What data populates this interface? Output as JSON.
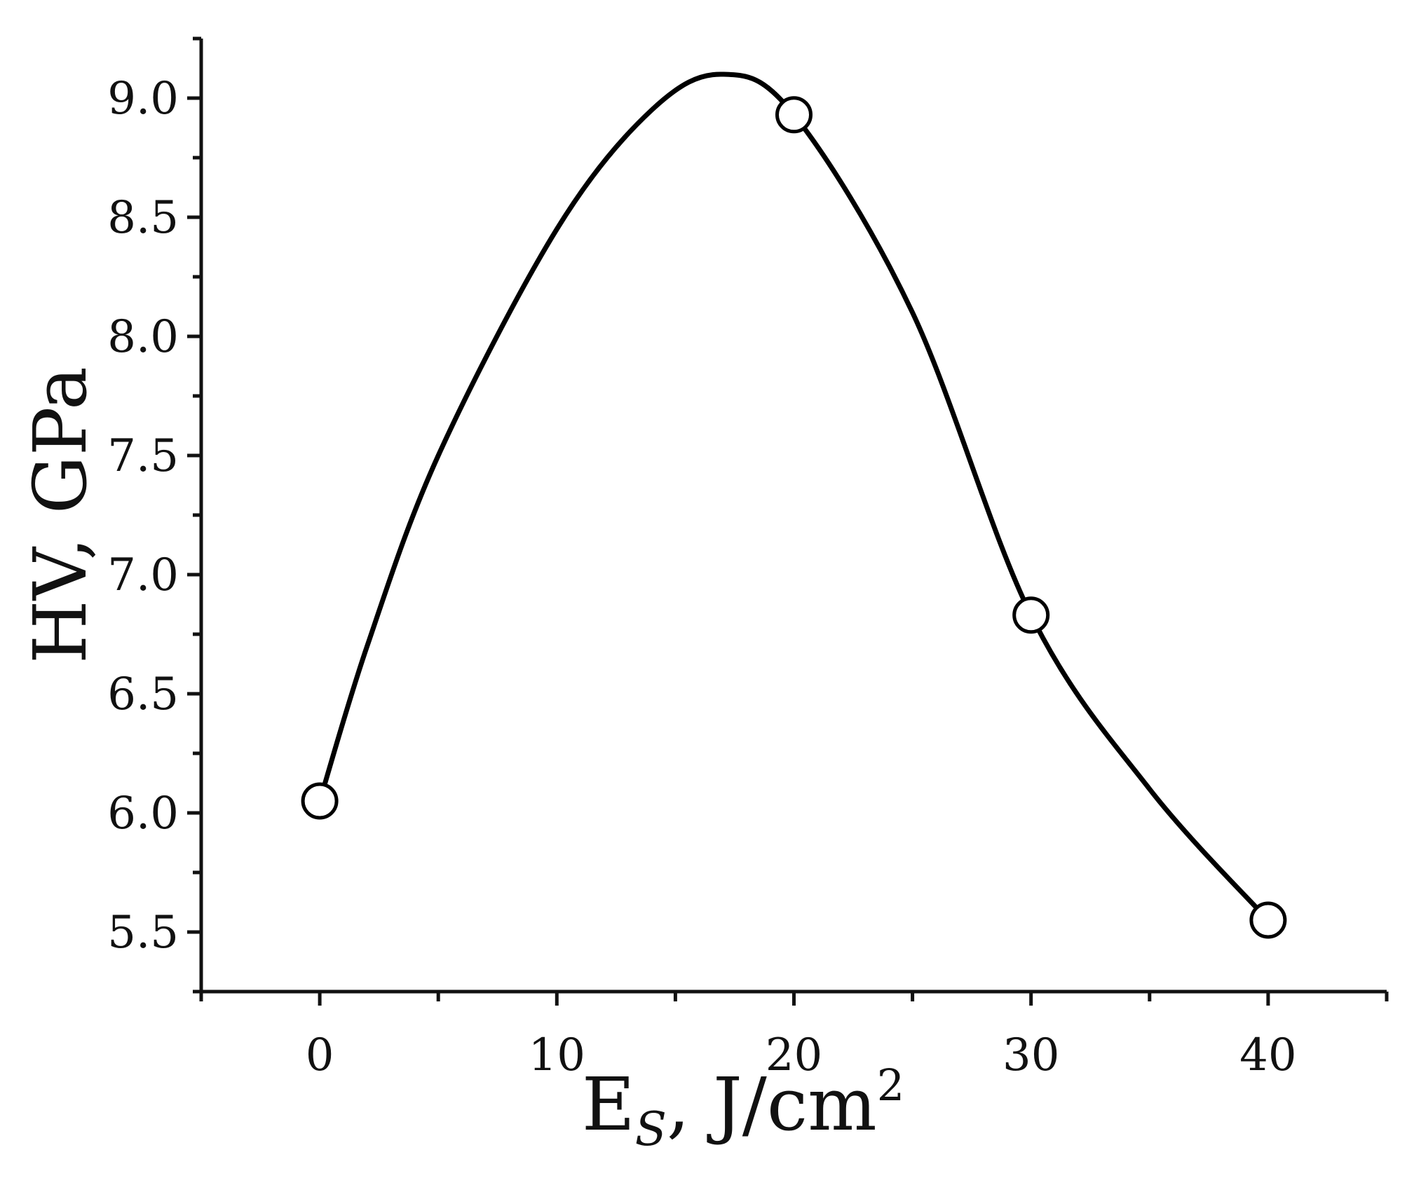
{
  "chart_data": {
    "type": "line",
    "title": "",
    "xlabel": "E",
    "xlabel_subscript": "S",
    "xlabel_rest": ", J/cm",
    "xlabel_superscript": "2",
    "ylabel": "HV, GPa",
    "xlim": [
      -5,
      45
    ],
    "ylim": [
      5.25,
      9.25
    ],
    "x_ticks": [
      0,
      10,
      20,
      30,
      40
    ],
    "x_tick_labels": [
      "0",
      "10",
      "20",
      "30",
      "40"
    ],
    "x_minor_ticks": [
      -5,
      5,
      15,
      25,
      35,
      45
    ],
    "y_ticks": [
      5.5,
      6.0,
      6.5,
      7.0,
      7.5,
      8.0,
      8.5,
      9.0
    ],
    "y_tick_labels": [
      "5.5",
      "6.0",
      "6.5",
      "7.0",
      "7.5",
      "8.0",
      "8.5",
      "9.0"
    ],
    "y_minor_ticks": [
      5.25,
      5.75,
      6.25,
      6.75,
      7.25,
      7.75,
      8.25,
      8.75,
      9.25
    ],
    "grid": false,
    "series": [
      {
        "markers": "open-circle",
        "line": "smooth",
        "x": [
          0,
          20,
          30,
          40
        ],
        "y": [
          6.05,
          8.93,
          6.83,
          5.55
        ]
      }
    ],
    "curve": {
      "x": [
        0,
        2,
        5,
        10,
        14,
        17,
        20,
        25,
        30,
        35,
        40
      ],
      "y": [
        6.05,
        6.7,
        7.5,
        8.45,
        8.95,
        9.1,
        8.93,
        8.1,
        6.83,
        6.1,
        5.55
      ]
    }
  }
}
